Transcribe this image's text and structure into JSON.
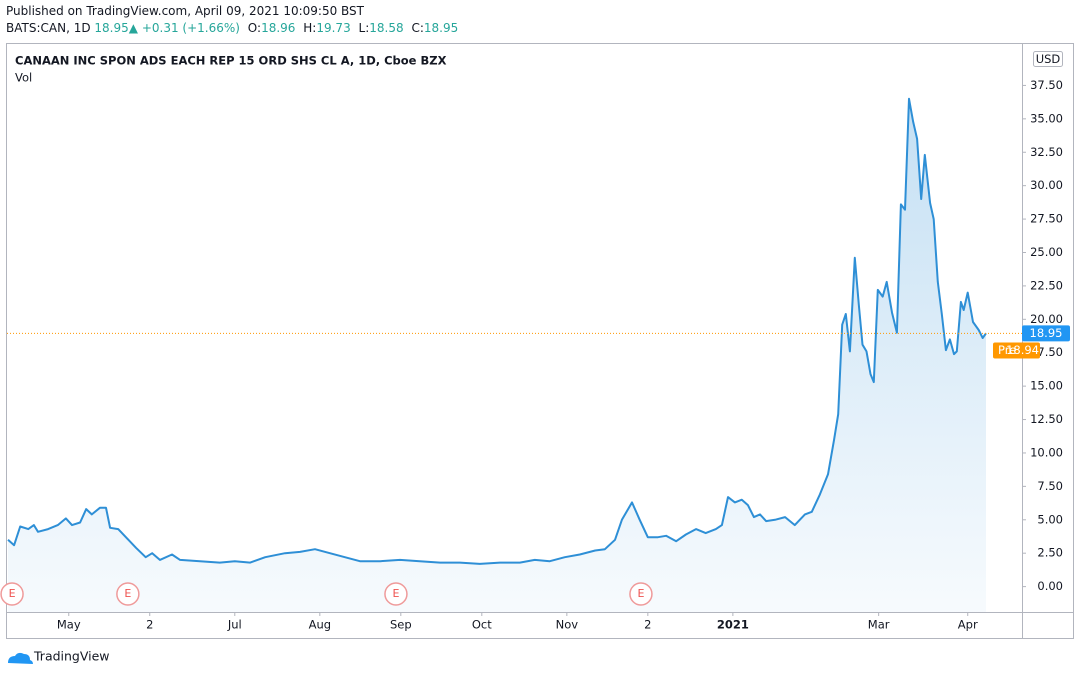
{
  "header": {
    "published": "Published on TradingView.com, April 09, 2021 10:09:50 BST",
    "symbol": "BATS:CAN, 1D",
    "last": "18.95",
    "arrow": "▲",
    "change": "+0.31 (+1.66%)",
    "o_label": "O:",
    "open": "18.96",
    "h_label": "H:",
    "high": "19.73",
    "l_label": "L:",
    "low": "18.58",
    "c_label": "C:",
    "close": "18.95"
  },
  "chart_data": {
    "type": "area",
    "title": "CANAAN INC SPON ADS EACH REP 15 ORD SHS CL A, 1D, Cboe BZX",
    "volume_label": "Vol",
    "currency": "USD",
    "color": "#2e8fd6",
    "x": [
      0,
      1.5,
      3,
      5,
      6.4,
      7.4,
      9.9,
      12.3,
      14.3,
      15.8,
      17.8,
      19.3,
      20.7,
      22.7,
      24.2,
      25.2,
      27.2,
      29.1,
      31.6,
      34,
      35.6,
      37.5,
      40.5,
      42.5,
      47.4,
      52.3,
      56,
      59.8,
      63.5,
      68.4,
      72.1,
      75.8,
      79.5,
      83.2,
      86.9,
      91.9,
      96.8,
      101.7,
      106.7,
      111.6,
      116.5,
      121.5,
      126.4,
      130.1,
      133.8,
      137.5,
      141.2,
      145,
      147.4,
      149.9,
      151.6,
      154.1,
      156,
      158,
      160.5,
      162.5,
      165,
      167.4,
      169.9,
      172.3,
      174.8,
      176.3,
      177.8,
      179.5,
      181.2,
      182.7,
      184.2,
      185.7,
      187.2,
      189.4,
      191.9,
      194.3,
      196.8,
      198.5,
      200.5,
      202.5,
      204,
      205,
      206,
      206.9,
      207.9,
      209.1,
      210.1,
      211,
      212,
      213,
      213.8,
      214.8,
      216,
      217,
      218.3,
      219.5,
      220.5,
      221.5,
      222.5,
      223.5,
      224.5,
      225.5,
      226.4,
      227.7,
      228.6,
      229.6,
      230.6,
      231.6,
      232.6,
      233.6,
      234.3,
      235.3,
      236,
      237,
      238.3,
      239.7,
      240.7,
      241.5
    ],
    "values": [
      3.5,
      3.1,
      4.5,
      4.3,
      4.6,
      4.1,
      4.3,
      4.6,
      5.1,
      4.6,
      4.8,
      5.8,
      5.4,
      5.9,
      5.9,
      4.4,
      4.3,
      3.7,
      2.9,
      2.2,
      2.5,
      2.0,
      2.4,
      2.0,
      1.9,
      1.8,
      1.9,
      1.8,
      2.2,
      2.5,
      2.6,
      2.8,
      2.5,
      2.2,
      1.9,
      1.9,
      2.0,
      1.9,
      1.8,
      1.8,
      1.7,
      1.8,
      1.8,
      2.0,
      1.9,
      2.2,
      2.4,
      2.7,
      2.8,
      3.5,
      5.0,
      6.3,
      5.0,
      3.7,
      3.7,
      3.8,
      3.4,
      3.9,
      4.3,
      4.0,
      4.3,
      4.6,
      6.7,
      6.3,
      6.5,
      6.1,
      5.2,
      5.4,
      4.9,
      5.0,
      5.2,
      4.6,
      5.4,
      5.6,
      6.9,
      8.4,
      11.0,
      12.9,
      19.6,
      20.4,
      17.6,
      24.6,
      21.1,
      18.1,
      17.6,
      15.9,
      15.3,
      22.2,
      21.7,
      22.8,
      20.5,
      19.0,
      28.6,
      28.2,
      36.5,
      34.8,
      33.5,
      29.0,
      32.3,
      28.7,
      27.5,
      22.8,
      20.4,
      17.7,
      18.5,
      17.4,
      17.6,
      21.3,
      20.7,
      22.0,
      19.8,
      19.2,
      18.6,
      18.95
    ],
    "xlim": [
      -0.25,
      250.4
    ],
    "xticks": [
      {
        "value": 15,
        "label": "May"
      },
      {
        "value": 35,
        "label": "2"
      },
      {
        "value": 56,
        "label": "Jul"
      },
      {
        "value": 77,
        "label": "Aug"
      },
      {
        "value": 97,
        "label": "Sep"
      },
      {
        "value": 117,
        "label": "Oct"
      },
      {
        "value": 138,
        "label": "Nov"
      },
      {
        "value": 158,
        "label": "2"
      },
      {
        "value": 179,
        "label": "2021"
      },
      {
        "value": 215,
        "label": "Mar"
      },
      {
        "value": 237,
        "label": "Apr"
      }
    ],
    "ylim": [
      -1.9,
      40.6
    ],
    "yticks": [
      {
        "value": 0,
        "label": "0.00"
      },
      {
        "value": 2.5,
        "label": "2.50"
      },
      {
        "value": 5,
        "label": "5.00"
      },
      {
        "value": 7.5,
        "label": "7.50"
      },
      {
        "value": 10,
        "label": "10.00"
      },
      {
        "value": 12.5,
        "label": "12.50"
      },
      {
        "value": 15,
        "label": "15.00"
      },
      {
        "value": 17.5,
        "label": "17.50"
      },
      {
        "value": 20,
        "label": "20.00"
      },
      {
        "value": 22.5,
        "label": "22.50"
      },
      {
        "value": 25,
        "label": "25.00"
      },
      {
        "value": 27.5,
        "label": "27.50"
      },
      {
        "value": 30,
        "label": "30.00"
      },
      {
        "value": 32.5,
        "label": "32.50"
      },
      {
        "value": 35,
        "label": "35.00"
      },
      {
        "value": 37.5,
        "label": "37.50"
      }
    ],
    "last_price": 18.95,
    "last_color": "#2196f3",
    "premarket": {
      "label": "Pre",
      "value": 18.94
    },
    "pre_color": "#ff9800",
    "events": [
      {
        "x": 1,
        "label": "E"
      },
      {
        "x": 29.6,
        "label": "E"
      },
      {
        "x": 95.8,
        "label": "E"
      },
      {
        "x": 156.3,
        "label": "E"
      }
    ]
  },
  "footer": {
    "brand": "TradingView"
  }
}
